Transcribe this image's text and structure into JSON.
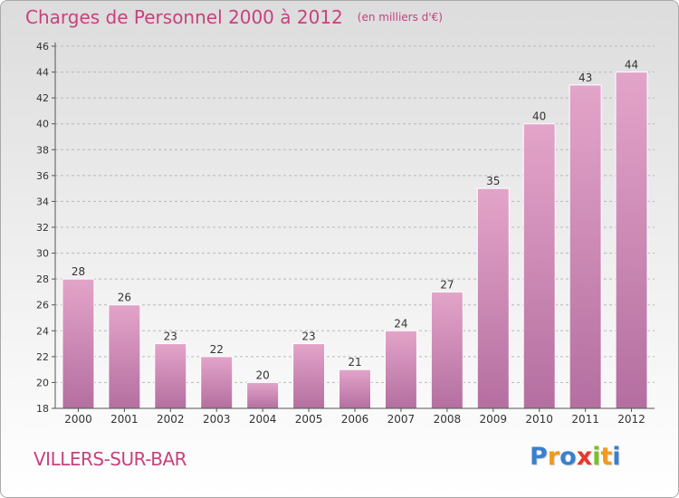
{
  "title": "Charges de Personnel 2000 à 2012",
  "subtitle": "(en milliers d'€)",
  "town": "VILLERS-SUR-BAR",
  "logo": [
    "P",
    "r",
    "o",
    "x",
    "i",
    "t",
    "i"
  ],
  "logo_colors": [
    "#3a7fcf",
    "#f29a1c",
    "#3a7fcf",
    "#e8392d",
    "#7bbf2a",
    "#f29a1c",
    "#3a7fcf"
  ],
  "colors": {
    "bar_top": "#e3a4c9",
    "bar_bottom": "#b46fa0",
    "title": "#c8417f",
    "grid": "#b8b8b8"
  },
  "chart_data": {
    "type": "bar",
    "categories": [
      "2000",
      "2001",
      "2002",
      "2003",
      "2004",
      "2005",
      "2006",
      "2007",
      "2008",
      "2009",
      "2010",
      "2011",
      "2012"
    ],
    "values": [
      28,
      26,
      23,
      22,
      20,
      23,
      21,
      24,
      27,
      35,
      40,
      43,
      44
    ],
    "ylim": [
      18,
      46
    ],
    "yticks": [
      18,
      20,
      22,
      24,
      26,
      28,
      30,
      32,
      34,
      36,
      38,
      40,
      42,
      44,
      46
    ],
    "grid": true,
    "data_labels": true
  }
}
